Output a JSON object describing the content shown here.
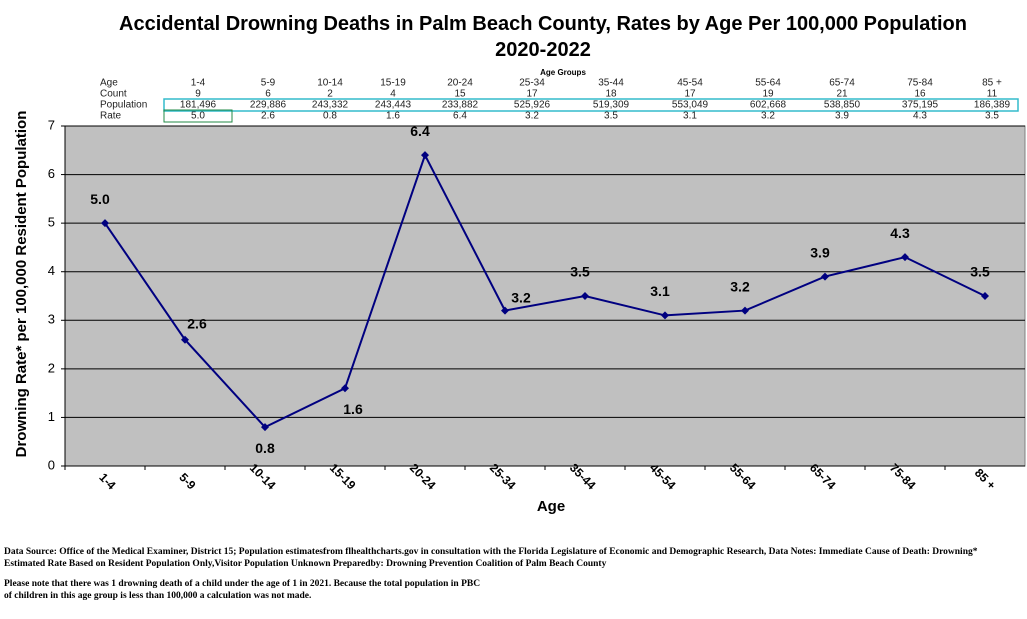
{
  "chart_data": {
    "type": "line",
    "title": "Accidental Drowning Deaths in Palm Beach County, Rates by Age Per 100,000 Population 2020-2022",
    "y_label": "Drowning Rate* per 100,000 Resident Population",
    "x_label": "Age",
    "categories": [
      "1-4",
      "5-9",
      "10-14",
      "15-19",
      "20-24",
      "25-34",
      "35-44",
      "45-54",
      "55-64",
      "65-74",
      "75-84",
      "85 +"
    ],
    "values": [
      5.0,
      2.6,
      0.8,
      1.6,
      6.4,
      3.2,
      3.5,
      3.1,
      3.2,
      3.9,
      4.3,
      3.5
    ],
    "value_labels": [
      "5.0",
      "2.6",
      "0.8",
      "1.6",
      "6.4",
      "3.2",
      "3.5",
      "3.1",
      "3.2",
      "3.9",
      "4.3",
      "3.5"
    ],
    "color": "#000080",
    "ylim": [
      0,
      7
    ],
    "yticks": [
      0,
      1,
      2,
      3,
      4,
      5,
      6,
      7
    ],
    "grid": true
  },
  "table": {
    "title": "Age Groups",
    "rows": [
      [
        "Age",
        "1-4",
        "5-9",
        "10-14",
        "15-19",
        "20-24",
        "25-34",
        "35-44",
        "45-54",
        "55-64",
        "65-74",
        "75-84",
        "85 +"
      ],
      [
        "Count",
        "9",
        "6",
        "2",
        "4",
        "15",
        "17",
        "18",
        "17",
        "19",
        "21",
        "16",
        "11"
      ],
      [
        "Population",
        "181,496",
        "229,886",
        "243,332",
        "243,443",
        "233,882",
        "525,926",
        "519,309",
        "553,049",
        "602,668",
        "538,850",
        "375,195",
        "186,389"
      ],
      [
        "Rate",
        "5.0",
        "2.6",
        "0.8",
        "1.6",
        "6.4",
        "3.2",
        "3.5",
        "3.1",
        "3.2",
        "3.9",
        "4.3",
        "3.5"
      ]
    ]
  },
  "notes": [
    "Data Source: Office of the Medical Examiner, District 15; Population estimatesfrom flhealthcharts.gov in consultation with the Florida Legislature of Economic and Demographic Research, Data Notes: Immediate Cause of Death: Drowning* Estimated Rate Based on Resident Population Only,Visitor Population Unknown Preparedby: Drowning Prevention Coalition of Palm Beach County",
    "Please note that there was 1 drowning death of a child under the age of 1 in 2021. Because the total population in PBC",
    "of children in this age group is less than 100,000 a calculation was not made."
  ]
}
